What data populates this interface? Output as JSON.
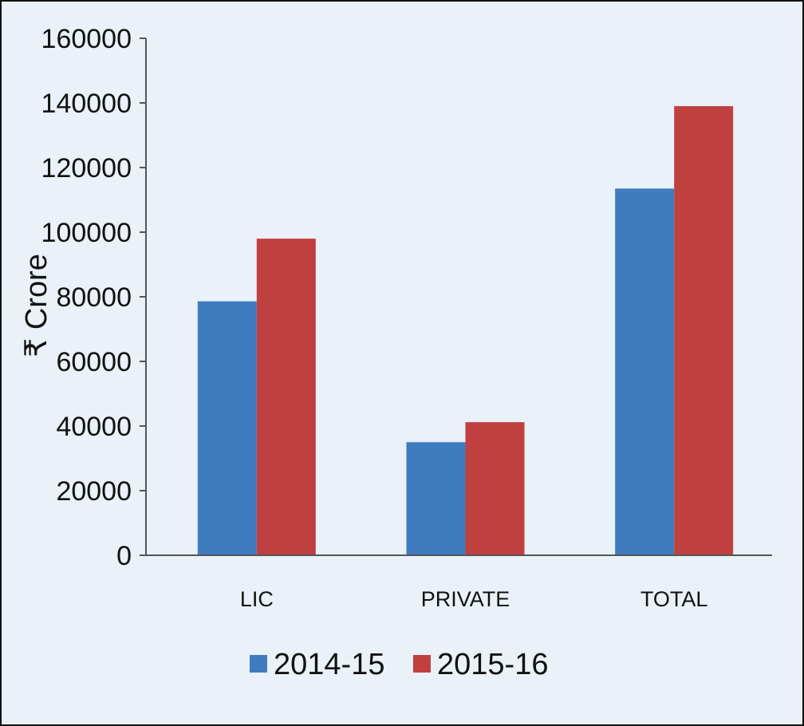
{
  "chart_data": {
    "type": "bar",
    "ylabel": "₹ Crore",
    "categories": [
      "LIC",
      "PRIVATE",
      "TOTAL"
    ],
    "series": [
      {
        "name": "2014-15",
        "color": "#3f7cbf",
        "values": [
          78600,
          35000,
          113500
        ]
      },
      {
        "name": "2015-16",
        "color": "#c0403f",
        "values": [
          98000,
          41200,
          139000
        ]
      }
    ],
    "ylim": [
      0,
      160000
    ],
    "yticks": [
      "0",
      "20000",
      "40000",
      "60000",
      "80000",
      "100000",
      "120000",
      "140000",
      "160000"
    ],
    "grid": false,
    "legend_position": "bottom"
  }
}
